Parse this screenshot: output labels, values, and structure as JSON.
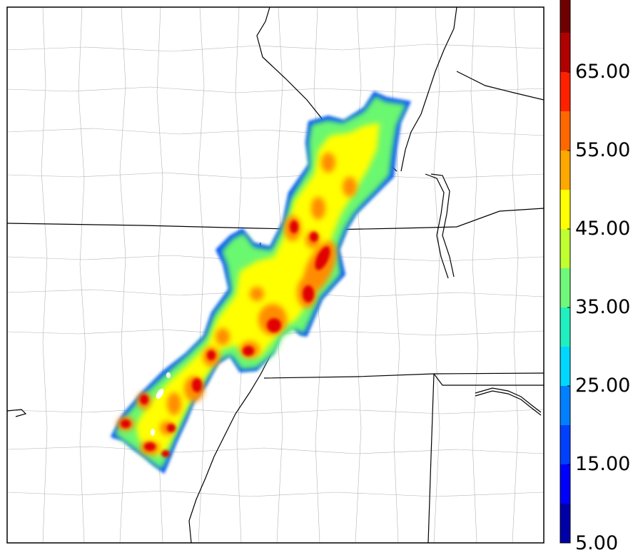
{
  "colorbar": {
    "min": 5,
    "max": 70,
    "step": 5,
    "extend": "max",
    "colors": [
      "#0000a8",
      "#0000ff",
      "#0040ff",
      "#0080ff",
      "#00d8ff",
      "#20f0c0",
      "#70f878",
      "#c0ff30",
      "#ffff00",
      "#ffa800",
      "#ff6800",
      "#ff2000",
      "#b00000",
      "#700000"
    ],
    "tick_labels": [
      "5.00",
      "15.00",
      "25.00",
      "35.00",
      "45.00",
      "55.00",
      "65.00"
    ],
    "tick_values": [
      5,
      15,
      25,
      35,
      45,
      55,
      65
    ]
  }
}
